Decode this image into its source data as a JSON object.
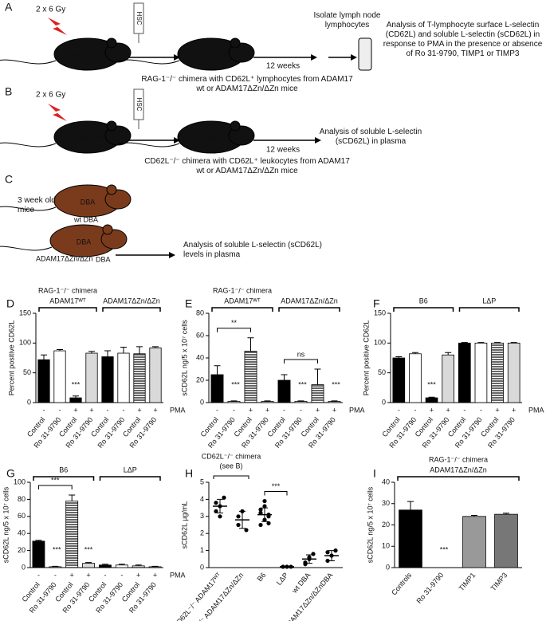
{
  "schematics": {
    "A": {
      "label": "A",
      "dose": "2 x 6 Gy",
      "syringe": "HSC",
      "recipient": "RAG-1⁻/⁻",
      "chimera": "RAG-1⁻/⁻",
      "time": "12 weeks",
      "step": "Isolate lymph node lymphocytes",
      "caption": "RAG-1⁻/⁻ chimera with CD62L⁺ lymphocytes from ADAM17 wt or ADAM17ΔZn/ΔZn mice",
      "analysis": "Analysis of T-lymphocyte surface L-selectin (CD62L)  and soluble L-selectin (sCD62L) in response to PMA in the presence or absence of Ro 31-9790, TIMP1 or TIMP3"
    },
    "B": {
      "label": "B",
      "dose": "2 x 6 Gy",
      "syringe": "HSC",
      "recipient": "CD62L⁻/⁻",
      "chimera": "CD62L⁻/⁻",
      "time": "12 weeks",
      "caption": "CD62L⁻/⁻ chimera with CD62L⁺ leukocytes from ADAM17 wt or ADAM17ΔZn/ΔZn mice",
      "analysis": "Analysis of soluble L-selectin (sCD62L) in plasma"
    },
    "C": {
      "label": "C",
      "age": "3 week old mice",
      "mouse1": "DBA",
      "strain1": "wt DBA",
      "mouse2": "DBA",
      "strain2": "ADAM17ΔZn/ΔZn",
      "strain2b": "DBA",
      "analysis": "Analysis of soluble L-selectin (sCD62L) levels in plasma"
    }
  },
  "chart_data": [
    {
      "type": "bar",
      "panel": "D",
      "title": "RAG-1⁻/⁻ chimera",
      "ylabel": "Percent positive CD62L",
      "ylim": [
        0,
        150
      ],
      "yticks": [
        0,
        50,
        100,
        150
      ],
      "categories": [
        "Control",
        "Ro 31-9790",
        "Control",
        "Ro 31-9790",
        "Control",
        "Ro 31-9790",
        "Control",
        "Ro 31-9790"
      ],
      "pma": [
        "-",
        "-",
        "+",
        "+",
        "-",
        "-",
        "+",
        "+"
      ],
      "pma_label": "PMA",
      "groups": [
        "ADAM17ᵂᵀ",
        "ADAM17ΔZn/ΔZn"
      ],
      "values": [
        72,
        87,
        8,
        83,
        77,
        83,
        82,
        92
      ],
      "errors": [
        8,
        2,
        3,
        3,
        10,
        10,
        12,
        2
      ],
      "fills": [
        "#000000",
        "#ffffff",
        "#000000",
        "#d9d9d9",
        "#000000",
        "#ffffff",
        "hatch",
        "#d9d9d9"
      ],
      "annotations": [
        "***"
      ]
    },
    {
      "type": "bar",
      "panel": "E",
      "title": "RAG-1⁻/⁻ chimera",
      "ylabel": "sCD62L ng/5 x 10⁷ cells",
      "ylim": [
        0,
        80
      ],
      "yticks": [
        0,
        20,
        40,
        60,
        80
      ],
      "categories": [
        "Control",
        "Ro 31-9790",
        "Control",
        "Ro 31-9790",
        "Control",
        "Ro 31-9790",
        "Control",
        "Ro 31-9790"
      ],
      "pma": [
        "-",
        "-",
        "+",
        "+",
        "-",
        "-",
        "+",
        "+"
      ],
      "pma_label": "PMA",
      "groups": [
        "ADAM17ᵂᵀ",
        "ADAM17ΔZn/ΔZn"
      ],
      "values": [
        25,
        1,
        46,
        1,
        20,
        1,
        16,
        1
      ],
      "errors": [
        8,
        0.5,
        12,
        0.5,
        5,
        0.5,
        14,
        0.5
      ],
      "fills": [
        "#000000",
        "#ffffff",
        "hatch",
        "#d9d9d9",
        "#000000",
        "#ffffff",
        "hatch",
        "#d9d9d9"
      ],
      "annotations": [
        "**",
        "ns",
        "***",
        "***",
        "***"
      ]
    },
    {
      "type": "bar",
      "panel": "F",
      "ylabel": "Percent positive CD62L",
      "ylim": [
        0,
        150
      ],
      "yticks": [
        0,
        50,
        100,
        150
      ],
      "categories": [
        "Control",
        "Ro 31-9790",
        "Control",
        "Ro 31-9790",
        "Control",
        "Ro 31-9790",
        "Control",
        "Ro 31-9790"
      ],
      "pma": [
        "-",
        "-",
        "+",
        "+",
        "-",
        "-",
        "+",
        "+"
      ],
      "pma_label": "PMA",
      "groups": [
        "B6",
        "LΔP"
      ],
      "values": [
        75,
        82,
        8,
        80,
        100,
        100,
        100,
        100
      ],
      "errors": [
        2,
        2,
        1,
        4,
        1,
        1,
        1,
        1
      ],
      "fills": [
        "#000000",
        "#ffffff",
        "#000000",
        "#d9d9d9",
        "#000000",
        "#ffffff",
        "hatch",
        "#d9d9d9"
      ],
      "annotations": [
        "***"
      ]
    },
    {
      "type": "bar",
      "panel": "G",
      "ylabel": "sCD62L ng/5 x 10⁷ cells",
      "ylim": [
        0,
        100
      ],
      "yticks": [
        0,
        20,
        40,
        60,
        80,
        100
      ],
      "categories": [
        "Control",
        "Ro 31-9790",
        "Control",
        "Ro 31-9790",
        "Control",
        "Ro 31-9790",
        "Control",
        "Ro 31-9790"
      ],
      "pma": [
        "-",
        "-",
        "+",
        "+",
        "-",
        "-",
        "+",
        "+"
      ],
      "pma_label": "PMA",
      "groups": [
        "B6",
        "LΔP"
      ],
      "values": [
        31,
        1,
        78,
        5,
        3,
        3,
        2,
        1
      ],
      "errors": [
        1,
        0.5,
        7,
        1,
        1,
        1,
        1,
        0.5
      ],
      "fills": [
        "#000000",
        "#ffffff",
        "hatch",
        "#d9d9d9",
        "#000000",
        "#ffffff",
        "hatch",
        "#d9d9d9"
      ],
      "annotations": [
        "***",
        "***",
        "***"
      ]
    },
    {
      "type": "strip",
      "panel": "H",
      "header": "CD62L⁻/⁻ chimera",
      "header_note": "(see B)",
      "ylabel": "sCD62L µg/mL",
      "ylim": [
        0,
        5
      ],
      "yticks": [
        0,
        1,
        2,
        3,
        4,
        5
      ],
      "categories": [
        "CD62L⁻/⁻ ADAM17ᵂᵀ",
        "CD62L⁻/⁻ ADAM17ΔZn/ΔZn",
        "B6",
        "LΔP",
        "wt DBA",
        "ADAM17ΔZn/ΔZnDBA"
      ],
      "points": [
        [
          3.3,
          3.6,
          4.1,
          3.8,
          3.0
        ],
        [
          2.5,
          3.3,
          2.2,
          3.0
        ],
        [
          2.5,
          3.6,
          3.0,
          3.2,
          2.8,
          2.6,
          3.4,
          3.9,
          3.1
        ],
        [
          0.05,
          0.05,
          0.05,
          0.05,
          0.05
        ],
        [
          0.2,
          0.5,
          0.8,
          0.3,
          0.6
        ],
        [
          0.4,
          0.7,
          1.0,
          0.9
        ]
      ],
      "means": [
        3.6,
        2.8,
        3.1,
        0.05,
        0.5,
        0.7
      ],
      "sds": [
        0.4,
        0.5,
        0.4,
        0.02,
        0.25,
        0.3
      ],
      "annotations": [
        "***"
      ]
    },
    {
      "type": "bar",
      "panel": "I",
      "title": "RAG-1⁻/⁻ chimera",
      "ylabel": "sCD62L ng/5 x 10⁷ cells",
      "ylim": [
        0,
        40
      ],
      "yticks": [
        0,
        10,
        20,
        30,
        40
      ],
      "categories": [
        "Controls",
        "Ro 31-9790",
        "TIMP1",
        "TIMP3"
      ],
      "groups": [
        "ADAM17ΔZn/ΔZn"
      ],
      "values": [
        27,
        0,
        24,
        25
      ],
      "errors": [
        4,
        0,
        0.5,
        0.5
      ],
      "fills": [
        "#000000",
        "#000000",
        "#999999",
        "#777777"
      ],
      "annotations": [
        "***"
      ]
    }
  ]
}
